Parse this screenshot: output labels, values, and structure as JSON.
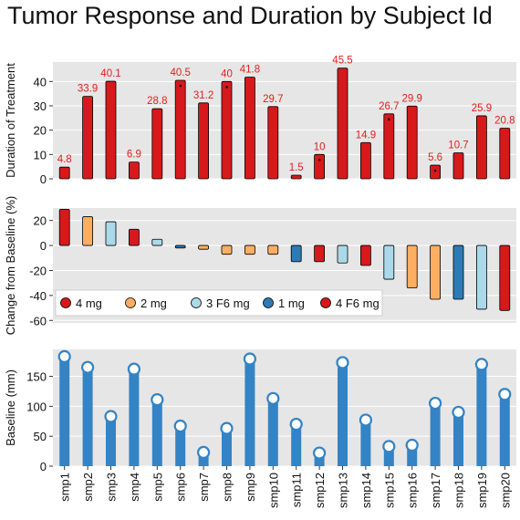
{
  "title": "Tumor Response and Duration by Subject Id",
  "colors": {
    "panel_bg": "#e6e6e6",
    "grid": "#ffffff",
    "bar_red": "#d7191c",
    "bar_orange": "#fdae61",
    "bar_lightblue": "#abd9e9",
    "bar_blue": "#2c7bb6",
    "label_red": "#e02020",
    "baseline_bar": "#3483c4"
  },
  "chart_data": [
    {
      "type": "bar",
      "name": "duration",
      "ylabel": "Duration of Treatment",
      "ylim": [
        0,
        48
      ],
      "yticks": [
        0,
        10,
        20,
        30,
        40
      ],
      "grid": true,
      "categories": [
        "smp1",
        "smp2",
        "smp3",
        "smp4",
        "smp5",
        "smp6",
        "smp7",
        "smp8",
        "smp9",
        "smp10",
        "smp11",
        "smp12",
        "smp13",
        "smp14",
        "smp15",
        "smp16",
        "smp17",
        "smp18",
        "smp19",
        "smp20"
      ],
      "values": [
        4.8,
        33.9,
        40.1,
        6.9,
        28.8,
        40.5,
        31.2,
        40,
        41.8,
        29.7,
        1.5,
        10,
        45.5,
        14.9,
        26.7,
        29.9,
        5.6,
        10.7,
        25.9,
        20.8
      ],
      "data_labels": [
        "4.8",
        "33.9",
        "40.1",
        "6.9",
        "28.8",
        "40.5",
        "31.2",
        "40",
        "41.8",
        "29.7",
        "1.5",
        "10",
        "45.5",
        "14.9",
        "26.7",
        "29.9",
        "5.6",
        "10.7",
        "25.9",
        "20.8"
      ],
      "markers": [
        false,
        false,
        false,
        false,
        false,
        true,
        false,
        true,
        false,
        false,
        false,
        true,
        false,
        false,
        true,
        false,
        true,
        false,
        false,
        false
      ]
    },
    {
      "type": "bar",
      "name": "change",
      "ylabel": "Change from Baseline (%)",
      "ylim": [
        -62,
        30
      ],
      "yticks": [
        20,
        0,
        -20,
        -40,
        -60
      ],
      "grid": true,
      "values": [
        29,
        23,
        19,
        13,
        5,
        -2,
        -3,
        -7,
        -7,
        -7,
        -13,
        -13,
        -14,
        -16,
        -27,
        -34,
        -43,
        -43,
        -51,
        -52
      ],
      "groups": [
        "4 mg",
        "2 mg",
        "3 F6 mg",
        "4 mg",
        "3 F6 mg",
        "1 mg",
        "2 mg",
        "2 mg",
        "2 mg",
        "2 mg",
        "1 mg",
        "4 F6 mg",
        "3 F6 mg",
        "4 F6 mg",
        "3 F6 mg",
        "2 mg",
        "2 mg",
        "1 mg",
        "3 F6 mg",
        "4 F6 mg"
      ],
      "legend": [
        {
          "label": "4 mg",
          "color": "#d7191c"
        },
        {
          "label": "2 mg",
          "color": "#fdae61"
        },
        {
          "label": "3 F6 mg",
          "color": "#abd9e9"
        },
        {
          "label": "1 mg",
          "color": "#2c7bb6"
        },
        {
          "label": "4 F6 mg",
          "color": "#d7191c"
        }
      ],
      "legend_position": "lower-left"
    },
    {
      "type": "bar",
      "name": "baseline",
      "ylabel": "Baseline (mm)",
      "ylim": [
        0,
        195
      ],
      "yticks": [
        0,
        50,
        100,
        150
      ],
      "grid": true,
      "values": [
        183,
        165,
        83,
        162,
        111,
        67,
        23,
        63,
        179,
        113,
        70,
        22,
        173,
        77,
        33,
        35,
        105,
        90,
        170,
        120
      ]
    }
  ]
}
